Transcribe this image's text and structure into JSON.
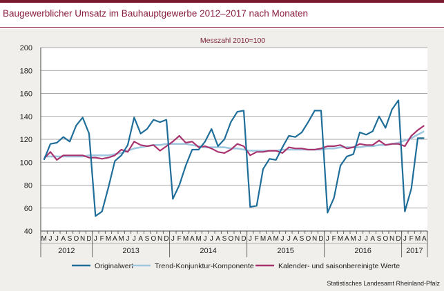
{
  "header": {
    "title": "Baugewerblicher Umsatz im Bauhauptgewerbe 2012–2017 nach Monaten"
  },
  "footer": {
    "source": "Statistisches Landesamt Rheinland-Pfalz"
  },
  "chart_data": {
    "type": "line",
    "subtitle": "Messzahl 2010=100",
    "ylim": [
      40,
      200
    ],
    "yticks": [
      40,
      60,
      80,
      100,
      120,
      140,
      160,
      180,
      200
    ],
    "grid": true,
    "legend_position": "bottom",
    "month_labels": [
      "M",
      "J",
      "J",
      "A",
      "S",
      "O",
      "N",
      "D",
      "J",
      "F",
      "M",
      "A",
      "M",
      "J",
      "J",
      "A",
      "S",
      "O",
      "N",
      "D",
      "J",
      "F",
      "M",
      "A",
      "M",
      "J",
      "J",
      "A",
      "S",
      "O",
      "N",
      "D",
      "J",
      "F",
      "M",
      "A",
      "M",
      "J",
      "J",
      "A",
      "S",
      "O",
      "N",
      "D",
      "J",
      "F",
      "M",
      "A",
      "M",
      "J",
      "J",
      "A",
      "S",
      "O",
      "N",
      "D",
      "J",
      "F",
      "M",
      "A"
    ],
    "year_groups": [
      {
        "label": "2012",
        "start": 0,
        "count": 8
      },
      {
        "label": "2013",
        "start": 8,
        "count": 12
      },
      {
        "label": "2014",
        "start": 20,
        "count": 12
      },
      {
        "label": "2015",
        "start": 32,
        "count": 12
      },
      {
        "label": "2016",
        "start": 44,
        "count": 12
      },
      {
        "label": "2017",
        "start": 56,
        "count": 4
      }
    ],
    "series": [
      {
        "name": "Originalwert",
        "color": "#1f6e9a",
        "values": [
          102,
          116,
          117,
          122,
          118,
          132,
          139,
          125,
          53,
          57,
          78,
          101,
          106,
          115,
          139,
          125,
          129,
          137,
          135,
          137,
          68,
          80,
          97,
          111,
          111,
          118,
          129,
          114,
          120,
          135,
          144,
          145,
          61,
          62,
          94,
          103,
          102,
          113,
          123,
          122,
          126,
          135,
          145,
          145,
          56,
          69,
          97,
          105,
          107,
          126,
          124,
          127,
          140,
          130,
          146,
          154,
          57,
          77,
          121,
          121
        ]
      },
      {
        "name": "Trend-Konjunktur-Komponente",
        "color": "#9fc8e0",
        "values": [
          105,
          105,
          105,
          105,
          105,
          105,
          105,
          106,
          106,
          106,
          106,
          107,
          108,
          110,
          112,
          113,
          114,
          115,
          115,
          116,
          116,
          116,
          116,
          115,
          114,
          113,
          113,
          113,
          113,
          112,
          112,
          111,
          110,
          110,
          110,
          110,
          110,
          111,
          111,
          111,
          111,
          111,
          111,
          111,
          112,
          112,
          113,
          113,
          113,
          113,
          114,
          114,
          115,
          115,
          116,
          117,
          119,
          121,
          124,
          127
        ]
      },
      {
        "name": "Kalender- und saisonbereinigte Werte",
        "color": "#a8336e",
        "values": [
          103,
          109,
          102,
          106,
          106,
          106,
          106,
          104,
          104,
          103,
          104,
          106,
          111,
          109,
          118,
          115,
          114,
          115,
          110,
          114,
          118,
          123,
          117,
          118,
          113,
          114,
          112,
          109,
          108,
          111,
          116,
          114,
          106,
          109,
          109,
          110,
          110,
          108,
          113,
          112,
          112,
          111,
          111,
          112,
          114,
          114,
          115,
          112,
          113,
          116,
          115,
          115,
          119,
          115,
          116,
          116,
          114,
          123,
          128,
          132
        ]
      }
    ],
    "x_axis_label": "",
    "y_axis_label": ""
  }
}
